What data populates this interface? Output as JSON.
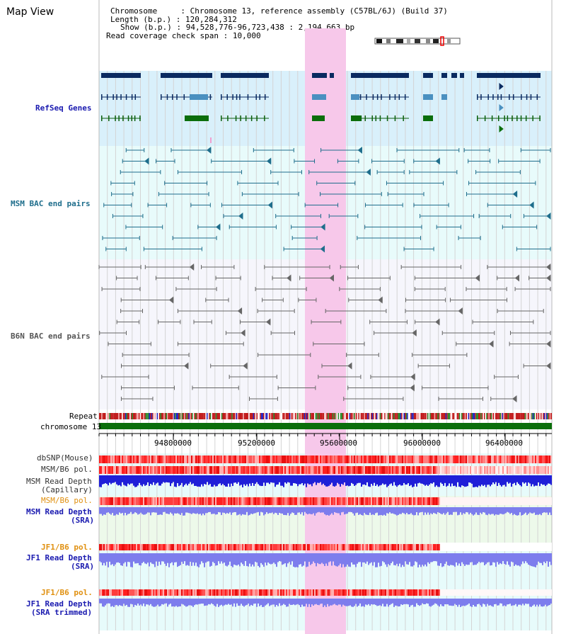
{
  "title": "Map View",
  "info": {
    "chromosome_label": "Chromosome",
    "chromosome_value": "Chromosome 13, reference assembly (C57BL/6J) (Build 37)",
    "length_label": "Length (b.p.)",
    "length_value": "120,284,312",
    "show_label": "Show (b.p.)",
    "show_value": "94,528,776-96,723,438 : 2,194,663 bp",
    "coverage_label": "Read coverage check span",
    "coverage_value": "10,000"
  },
  "tracks": {
    "refseq": "RefSeq Genes",
    "msm_bac": "MSM BAC end pairs",
    "b6n_bac": "B6N BAC end pairs",
    "repeat": "Repeat",
    "chromosome": "chromosome 13",
    "dbsnp": "dbSNP(Mouse)",
    "msm_b6_pol": "MSM/B6 pol.",
    "msm_depth_cap_1": "MSM Read Depth",
    "msm_depth_cap_2": "(Capillary)",
    "msm_b6_pol_2": "MSM/B6 pol.",
    "msm_depth_sra_1": "MSM Read Depth",
    "msm_depth_sra_2": "(SRA)",
    "jf1_pol_1": "JF1/B6 pol.",
    "jf1_depth_1": "JF1 Read Depth",
    "jf1_depth_2": "(SRA)",
    "jf1_pol_2": "JF1/B6 pol.",
    "jf1_trim_1": "JF1 Read Depth",
    "jf1_trim_2": "(SRA trimmed)"
  },
  "axis_ticks": [
    "94800000",
    "95200000",
    "95600000",
    "96000000",
    "96400000"
  ],
  "colors": {
    "navy": "#0a2a60",
    "refseq_bg": "#d9f0fb",
    "highlight": "#f7c8ea",
    "chrom_green": "#0b6e0b",
    "msm_teal": "#1f6e8c",
    "b6n_gray": "#666666",
    "depth_blue": "#1f1fd8",
    "depth_light_blue": "#7d7ded",
    "orange": "#e09010"
  }
}
